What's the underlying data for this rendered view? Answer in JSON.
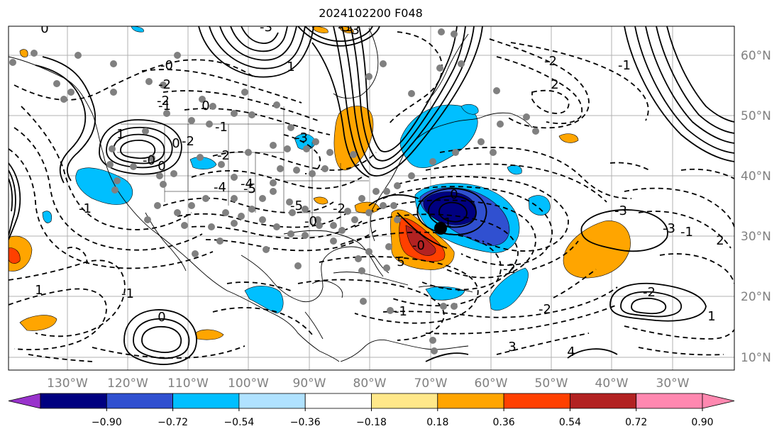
{
  "title": "2024102200 F048",
  "lon_labels": [
    "130°W",
    "120°W",
    "110°W",
    "100°W",
    "90°W",
    "80°W",
    "70°W",
    "60°W",
    "50°W",
    "40°W",
    "30°W"
  ],
  "lat_labels": [
    "60°N",
    "50°N",
    "40°N",
    "30°N",
    "20°N",
    "10°N"
  ],
  "colorbar": {
    "tick_labels": [
      "−0.90",
      "−0.72",
      "−0.54",
      "−0.36",
      "−0.18",
      "0.18",
      "0.36",
      "0.54",
      "0.72",
      "0.90"
    ],
    "under_color": "#9933cc",
    "colors": [
      "#9933cc",
      "#000080",
      "#3050d0",
      "#00bfff",
      "#b0e2ff",
      "#ffffff",
      "#ffe88a",
      "#ffa500",
      "#ff4000",
      "#b22222",
      "#ff88b0"
    ],
    "over_color": "#ff88b0"
  },
  "contour_labels": [
    "0",
    "-3",
    "-5",
    "-3",
    "-0",
    "-2",
    "1",
    "-2",
    "-1",
    "0",
    "-1",
    "-2",
    "-2",
    "-3",
    "-4",
    "-4",
    "-5",
    "-5",
    "-2",
    "-0",
    "-1",
    "1",
    "-1",
    "0",
    "-0",
    "0",
    "1",
    "0",
    "-1",
    "-2",
    "2",
    "-2",
    "-1",
    "-2",
    "-3",
    "-3",
    "-1",
    "2",
    "1",
    "3",
    "4",
    "5",
    "-0",
    "0",
    "-1",
    "-2"
  ]
}
